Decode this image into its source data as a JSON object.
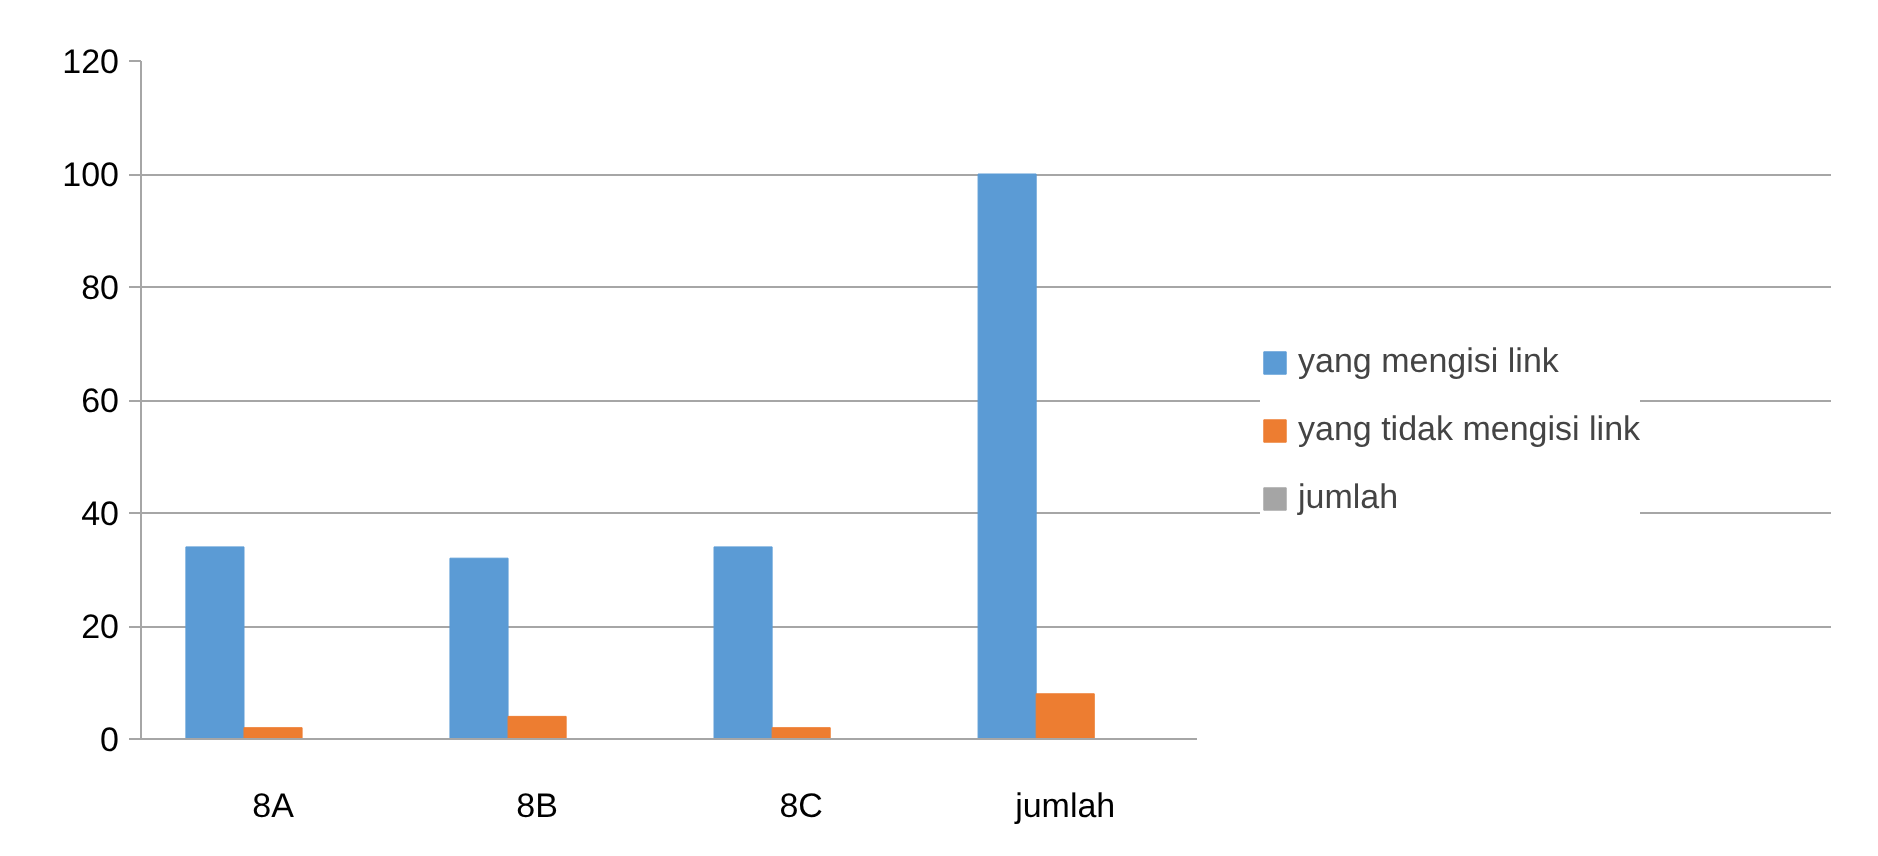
{
  "chart_data": {
    "type": "bar",
    "categories": [
      "8A",
      "8B",
      "8C",
      "jumlah"
    ],
    "series": [
      {
        "name": "yang mengisi link",
        "color": "#5b9bd5",
        "values": [
          34,
          32,
          34,
          100
        ]
      },
      {
        "name": "yang tidak mengisi link",
        "color": "#ed7d31",
        "values": [
          2,
          4,
          2,
          8
        ]
      },
      {
        "name": "jumlah",
        "color": "#a5a5a5",
        "values": [
          0,
          0,
          0,
          0
        ]
      }
    ],
    "ylim": [
      0,
      120
    ],
    "yticks": [
      0,
      20,
      40,
      60,
      80,
      100,
      120
    ],
    "grid": "y",
    "legend": "right"
  }
}
